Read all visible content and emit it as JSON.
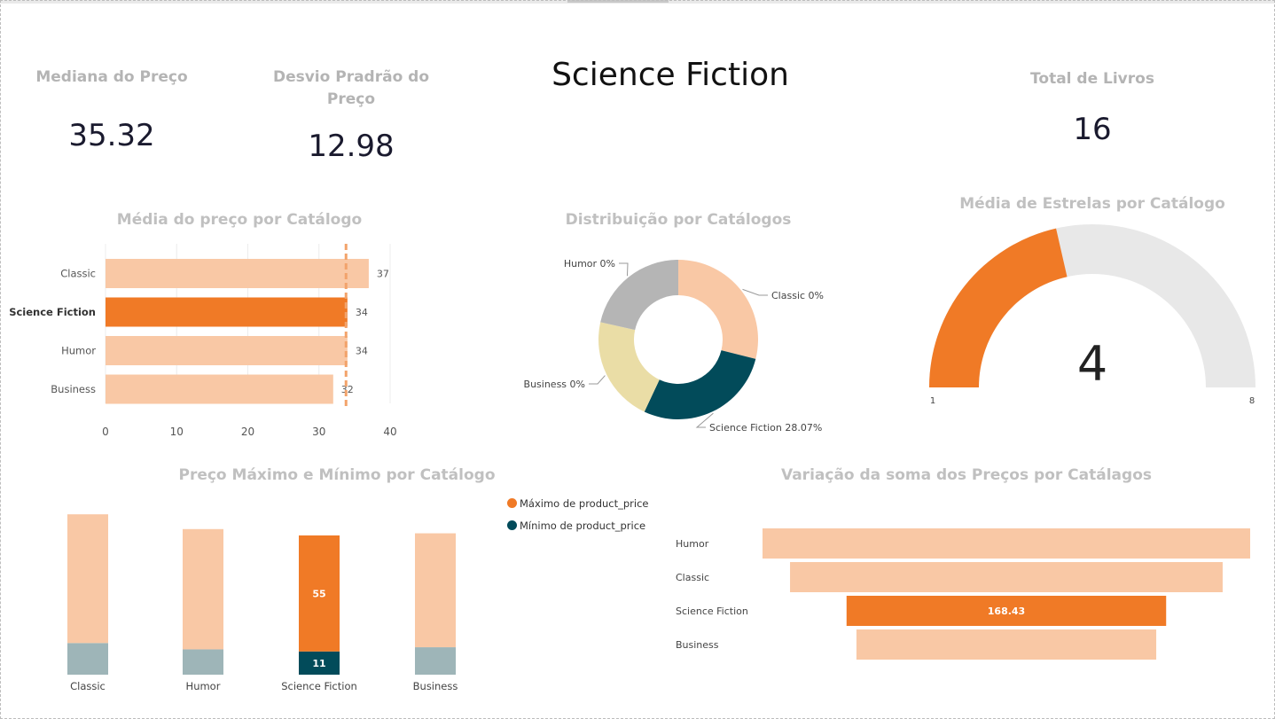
{
  "colors": {
    "accent": "#F07A26",
    "light": "#F9C8A5",
    "dark_teal": "#024B5A",
    "teal_grey": "#9EB5B8",
    "grey": "#B5B5B5",
    "khaki": "#EADDA6",
    "gauge_bg": "#E8E8E8"
  },
  "page_title": "Science Fiction",
  "kpis": {
    "mediana": {
      "label": "Mediana do Preço",
      "value": "35.32"
    },
    "desvio": {
      "label": "Desvio Pradrão do Preço",
      "value": "12.98"
    },
    "total": {
      "label": "Total de Livros",
      "value": "16"
    }
  },
  "chart_data": [
    {
      "type": "bar",
      "orientation": "horizontal",
      "title": "Média do preço por  Catálogo",
      "categories": [
        "Classic",
        "Science Fiction",
        "Humor",
        "Business"
      ],
      "values": [
        37,
        34,
        34,
        32
      ],
      "value_labels": [
        "37",
        "34",
        "34",
        "32"
      ],
      "highlighted": "Science Fiction",
      "average_line": 33.8,
      "xlim": [
        0,
        40
      ],
      "xticks": [
        "0",
        "10",
        "20",
        "30",
        "40"
      ]
    },
    {
      "type": "pie",
      "donut": true,
      "title": "Distribuição por Catálogos",
      "slices": [
        {
          "label": "Classic 0%",
          "value": 28.9,
          "color_key": "light"
        },
        {
          "label": "Science Fiction 28.07%",
          "value": 28.07,
          "color_key": "dark_teal"
        },
        {
          "label": "Business 0%",
          "value": 21.5,
          "color_key": "khaki"
        },
        {
          "label": "Humor 0%",
          "value": 21.5,
          "color_key": "grey"
        }
      ]
    },
    {
      "type": "gauge",
      "title": "Média de Estrelas por Catálogo",
      "value": 4,
      "value_label": "4",
      "min": 1,
      "max": 8,
      "min_label": "1",
      "max_label": "8"
    },
    {
      "type": "bar",
      "stacked": true,
      "title": "Preço Máximo e Mínimo por Catálogo",
      "categories": [
        "Classic",
        "Humor",
        "Science Fiction",
        "Business"
      ],
      "highlighted": "Science Fiction",
      "series": [
        {
          "name": "Máximo de product_price",
          "values": [
            61,
            57,
            55,
            54
          ],
          "labels": [
            "",
            "",
            "55",
            ""
          ]
        },
        {
          "name": "Mínimo de product_price",
          "values": [
            15,
            12,
            11,
            13
          ],
          "labels": [
            "",
            "",
            "11",
            ""
          ]
        }
      ]
    },
    {
      "type": "bar",
      "orientation": "funnel",
      "title": "Variação da soma dos Preços por Catálagos",
      "categories": [
        "Humor",
        "Classic",
        "Science Fiction",
        "Business"
      ],
      "values": [
        257,
        228,
        168.43,
        158
      ],
      "value_labels": [
        "",
        "",
        "168.43",
        ""
      ],
      "highlighted": "Science Fiction"
    }
  ]
}
